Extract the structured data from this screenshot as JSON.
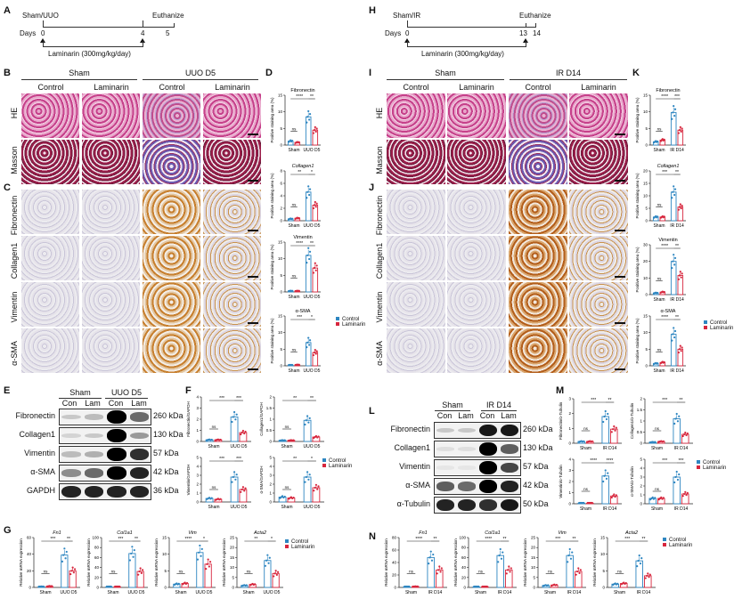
{
  "panels": {
    "A": {
      "label": "A",
      "start_label": "Sham/UUO",
      "end_label": "Euthanize",
      "days_label": "Days",
      "ticks": [
        "0",
        "4",
        "5"
      ],
      "treatment": "Laminarin (300mg/kg/day)"
    },
    "H": {
      "label": "H",
      "start_label": "Sham/IR",
      "end_label": "Euthanize",
      "days_label": "Days",
      "ticks": [
        "0",
        "13",
        "14"
      ],
      "treatment": "Laminarin (300mg/kg/day)"
    },
    "B": {
      "label": "B",
      "groups": [
        "Sham",
        "UUO D5"
      ],
      "columns": [
        "Control",
        "Laminarin",
        "Control",
        "Laminarin"
      ],
      "rows": [
        "HE",
        "Masson"
      ]
    },
    "C": {
      "label": "C",
      "rows": [
        "Fibronectin",
        "Collagen1",
        "Vimentin",
        "α-SMA"
      ],
      "scale_bar": "50 μm"
    },
    "I": {
      "label": "I",
      "groups": [
        "Sham",
        "IR D14"
      ],
      "columns": [
        "Control",
        "Laminarin",
        "Control",
        "Laminarin"
      ],
      "rows": [
        "HE",
        "Masson"
      ]
    },
    "J": {
      "label": "J",
      "rows": [
        "Fibronectin",
        "Collagen1",
        "Vimentin",
        "α-SMA"
      ],
      "scale_bar": "50 μm"
    },
    "D": {
      "label": "D"
    },
    "K": {
      "label": "K"
    },
    "E": {
      "label": "E",
      "groups": [
        "Sham",
        "UUO D5"
      ],
      "lanes": [
        "Con",
        "Lam",
        "Con",
        "Lam"
      ],
      "proteins": [
        "Fibronectin",
        "Collagen1",
        "Vimentin",
        "α-SMA",
        "GAPDH"
      ],
      "kda": [
        "260 kDa",
        "130 kDa",
        "57 kDa",
        "42 kDa",
        "36 kDa"
      ]
    },
    "L": {
      "label": "L",
      "groups": [
        "Sham",
        "IR D14"
      ],
      "lanes": [
        "Con",
        "Lam",
        "Con",
        "Lam"
      ],
      "proteins": [
        "Fibronectin",
        "Collagen1",
        "Vimentin",
        "α-SMA",
        "α-Tubulin"
      ],
      "kda": [
        "260 kDa",
        "130 kDa",
        "57 kDa",
        "42 kDa",
        "50 kDa"
      ]
    },
    "F": {
      "label": "F"
    },
    "M": {
      "label": "M"
    },
    "G": {
      "label": "G"
    },
    "N": {
      "label": "N"
    }
  },
  "legend": {
    "control": "Control",
    "laminarin": "Laminarin"
  },
  "colors": {
    "control": "#2e86c1",
    "laminarin": "#d7263d",
    "axis": "#222222"
  },
  "chart_data": [
    {
      "panel": "D",
      "type": "bar",
      "title": "Fibronectin",
      "ylabel": "Positive staining area (%)",
      "categories": [
        "Sham",
        "UUO D5"
      ],
      "ylim": [
        0,
        15
      ],
      "yticks": [
        0,
        5,
        10,
        15
      ],
      "series": [
        {
          "name": "Control",
          "values": [
            1.2,
            8.5
          ]
        },
        {
          "name": "Laminarin",
          "values": [
            0.8,
            4.5
          ]
        }
      ],
      "annotations": [
        "****",
        "**",
        "ns"
      ]
    },
    {
      "panel": "D",
      "type": "bar",
      "title": "Collagen1",
      "ylabel": "Positive staining area (%)",
      "categories": [
        "Sham",
        "UUO D5"
      ],
      "ylim": [
        0,
        8
      ],
      "yticks": [
        0,
        2,
        4,
        6,
        8
      ],
      "series": [
        {
          "name": "Control",
          "values": [
            0.3,
            4.6
          ]
        },
        {
          "name": "Laminarin",
          "values": [
            0.4,
            2.5
          ]
        }
      ],
      "annotations": [
        "**",
        "*",
        "ns"
      ]
    },
    {
      "panel": "D",
      "type": "bar",
      "title": "Vimentin",
      "ylabel": "Positive staining area (%)",
      "categories": [
        "Sham",
        "UUO D5"
      ],
      "ylim": [
        0,
        15
      ],
      "yticks": [
        0,
        5,
        10,
        15
      ],
      "series": [
        {
          "name": "Control",
          "values": [
            0.3,
            11.0
          ]
        },
        {
          "name": "Laminarin",
          "values": [
            0.3,
            7.2
          ]
        }
      ],
      "annotations": [
        "****",
        "**",
        "ns"
      ]
    },
    {
      "panel": "D",
      "type": "bar",
      "title": "α-SMA",
      "ylabel": "Positive staining area (%)",
      "categories": [
        "Sham",
        "UUO D5"
      ],
      "ylim": [
        0,
        15
      ],
      "yticks": [
        0,
        5,
        10,
        15
      ],
      "series": [
        {
          "name": "Control",
          "values": [
            0.2,
            7.0
          ]
        },
        {
          "name": "Laminarin",
          "values": [
            0.3,
            4.0
          ]
        }
      ],
      "annotations": [
        "***",
        "*",
        "ns"
      ]
    },
    {
      "panel": "F",
      "type": "bar",
      "title": "",
      "ylabel": "Fibronectin/GAPDH",
      "categories": [
        "Sham",
        "UUO D5"
      ],
      "ylim": [
        0,
        4
      ],
      "yticks": [
        0,
        1,
        2,
        3,
        4
      ],
      "series": [
        {
          "name": "Control",
          "values": [
            0.15,
            2.2
          ]
        },
        {
          "name": "Laminarin",
          "values": [
            0.15,
            0.8
          ]
        }
      ],
      "annotations": [
        "***",
        "***",
        "ns"
      ]
    },
    {
      "panel": "F",
      "type": "bar",
      "title": "",
      "ylabel": "Collagen1/GAPDH",
      "categories": [
        "Sham",
        "UUO D5"
      ],
      "ylim": [
        0,
        2.0
      ],
      "yticks": [
        0.0,
        0.5,
        1.0,
        1.5,
        2.0
      ],
      "series": [
        {
          "name": "Control",
          "values": [
            0.05,
            0.95
          ]
        },
        {
          "name": "Laminarin",
          "values": [
            0.05,
            0.2
          ]
        }
      ],
      "annotations": [
        "**",
        "**",
        "ns"
      ]
    },
    {
      "panel": "F",
      "type": "bar",
      "title": "",
      "ylabel": "Vimentin/GAPDH",
      "categories": [
        "Sham",
        "UUO D5"
      ],
      "ylim": [
        0,
        5
      ],
      "yticks": [
        0,
        1,
        2,
        3,
        4,
        5
      ],
      "series": [
        {
          "name": "Control",
          "values": [
            0.4,
            2.8
          ]
        },
        {
          "name": "Laminarin",
          "values": [
            0.3,
            1.4
          ]
        }
      ],
      "annotations": [
        "***",
        "***",
        "ns"
      ]
    },
    {
      "panel": "F",
      "type": "bar",
      "title": "",
      "ylabel": "α-SMA/GAPDH",
      "categories": [
        "Sham",
        "UUO D5"
      ],
      "ylim": [
        0,
        5
      ],
      "yticks": [
        0,
        1,
        2,
        3,
        4,
        5
      ],
      "series": [
        {
          "name": "Control",
          "values": [
            0.55,
            2.8
          ]
        },
        {
          "name": "Laminarin",
          "values": [
            0.45,
            1.6
          ]
        }
      ],
      "annotations": [
        "**",
        "*",
        "ns"
      ]
    },
    {
      "panel": "G",
      "type": "bar",
      "title": "Fn1",
      "ylabel": "Relative mRNA expression",
      "categories": [
        "Sham",
        "UUO D5"
      ],
      "ylim": [
        0,
        60
      ],
      "yticks": [
        0,
        20,
        40,
        60
      ],
      "series": [
        {
          "name": "Control",
          "values": [
            1,
            39
          ]
        },
        {
          "name": "Laminarin",
          "values": [
            1.5,
            20
          ]
        }
      ],
      "annotations": [
        "***",
        "**",
        "ns"
      ]
    },
    {
      "panel": "G",
      "type": "bar",
      "title": "Col1a1",
      "ylabel": "Relative mRNA expression",
      "categories": [
        "Sham",
        "UUO D5"
      ],
      "ylim": [
        0,
        100
      ],
      "yticks": [
        0,
        20,
        40,
        60,
        80,
        100
      ],
      "series": [
        {
          "name": "Control",
          "values": [
            1,
            68
          ]
        },
        {
          "name": "Laminarin",
          "values": [
            1.5,
            32
          ]
        }
      ],
      "annotations": [
        "***",
        "**",
        "ns"
      ]
    },
    {
      "panel": "G",
      "type": "bar",
      "title": "Vim",
      "ylabel": "Relative mRNA expression",
      "categories": [
        "Sham",
        "UUO D5"
      ],
      "ylim": [
        0,
        15
      ],
      "yticks": [
        0,
        5,
        10,
        15
      ],
      "series": [
        {
          "name": "Control",
          "values": [
            1,
            10.5
          ]
        },
        {
          "name": "Laminarin",
          "values": [
            1.2,
            7
          ]
        }
      ],
      "annotations": [
        "****",
        "*",
        "ns"
      ]
    },
    {
      "panel": "G",
      "type": "bar",
      "title": "Acta2",
      "ylabel": "Relative mRNA expression",
      "categories": [
        "Sham",
        "UUO D5"
      ],
      "ylim": [
        0,
        25
      ],
      "yticks": [
        0,
        5,
        10,
        15,
        20,
        25
      ],
      "series": [
        {
          "name": "Control",
          "values": [
            1,
            13.5
          ]
        },
        {
          "name": "Laminarin",
          "values": [
            1.5,
            7
          ]
        }
      ],
      "annotations": [
        "**",
        "*",
        "ns"
      ]
    },
    {
      "panel": "K",
      "type": "bar",
      "title": "Fibronectin",
      "ylabel": "Positive staining area (%)",
      "categories": [
        "Sham",
        "IR D14"
      ],
      "ylim": [
        0,
        15
      ],
      "yticks": [
        0,
        5,
        10,
        15
      ],
      "series": [
        {
          "name": "Control",
          "values": [
            1.0,
            9.8
          ]
        },
        {
          "name": "Laminarin",
          "values": [
            1.5,
            4.5
          ]
        }
      ],
      "annotations": [
        "****",
        "***",
        "ns"
      ]
    },
    {
      "panel": "K",
      "type": "bar",
      "title": "Collagen1",
      "ylabel": "Positive staining area (%)",
      "categories": [
        "Sham",
        "IR D14"
      ],
      "ylim": [
        0,
        20
      ],
      "yticks": [
        0,
        5,
        10,
        15,
        20
      ],
      "series": [
        {
          "name": "Control",
          "values": [
            1.5,
            11.5
          ]
        },
        {
          "name": "Laminarin",
          "values": [
            1.5,
            5.5
          ]
        }
      ],
      "annotations": [
        "***",
        "**",
        "ns"
      ]
    },
    {
      "panel": "K",
      "type": "bar",
      "title": "Vimentin",
      "ylabel": "Positive staining area (%)",
      "categories": [
        "Sham",
        "IR D14"
      ],
      "ylim": [
        0,
        30
      ],
      "yticks": [
        0,
        10,
        20,
        30
      ],
      "series": [
        {
          "name": "Control",
          "values": [
            1.0,
            20
          ]
        },
        {
          "name": "Laminarin",
          "values": [
            1.5,
            11.5
          ]
        }
      ],
      "annotations": [
        "****",
        "**",
        "ns"
      ]
    },
    {
      "panel": "K",
      "type": "bar",
      "title": "α-SMA",
      "ylabel": "Positive staining area (%)",
      "categories": [
        "Sham",
        "IR D14"
      ],
      "ylim": [
        0,
        15
      ],
      "yticks": [
        0,
        5,
        10,
        15
      ],
      "series": [
        {
          "name": "Control",
          "values": [
            0.7,
            9.5
          ]
        },
        {
          "name": "Laminarin",
          "values": [
            1.0,
            5.0
          ]
        }
      ],
      "annotations": [
        "****",
        "**",
        "ns"
      ]
    },
    {
      "panel": "M",
      "type": "bar",
      "title": "",
      "ylabel": "Fibronectin/α-Tubulin",
      "categories": [
        "Sham",
        "IR D14"
      ],
      "ylim": [
        0,
        3
      ],
      "yticks": [
        0,
        1,
        2,
        3
      ],
      "series": [
        {
          "name": "Control",
          "values": [
            0.12,
            1.8
          ]
        },
        {
          "name": "Laminarin",
          "values": [
            0.12,
            0.95
          ]
        }
      ],
      "annotations": [
        "***",
        "**",
        "ns"
      ]
    },
    {
      "panel": "M",
      "type": "bar",
      "title": "",
      "ylabel": "Collagen1/α-Tubulin",
      "categories": [
        "Sham",
        "IR D14"
      ],
      "ylim": [
        0,
        2.0
      ],
      "yticks": [
        0.0,
        0.5,
        1.0,
        1.5,
        2.0
      ],
      "series": [
        {
          "name": "Control",
          "values": [
            0.05,
            1.1
          ]
        },
        {
          "name": "Laminarin",
          "values": [
            0.08,
            0.4
          ]
        }
      ],
      "annotations": [
        "***",
        "**",
        "ns"
      ]
    },
    {
      "panel": "M",
      "type": "bar",
      "title": "",
      "ylabel": "Vimentin/α-Tubulin",
      "categories": [
        "Sham",
        "IR D14"
      ],
      "ylim": [
        0,
        4
      ],
      "yticks": [
        0,
        1,
        2,
        3,
        4
      ],
      "series": [
        {
          "name": "Control",
          "values": [
            0.05,
            2.5
          ]
        },
        {
          "name": "Laminarin",
          "values": [
            0.05,
            0.7
          ]
        }
      ],
      "annotations": [
        "****",
        "****",
        "ns"
      ]
    },
    {
      "panel": "M",
      "type": "bar",
      "title": "",
      "ylabel": "α-SMA/α-Tubulin",
      "categories": [
        "Sham",
        "IR D14"
      ],
      "ylim": [
        0,
        5
      ],
      "yticks": [
        0,
        1,
        2,
        3,
        4,
        5
      ],
      "series": [
        {
          "name": "Control",
          "values": [
            0.6,
            3.0
          ]
        },
        {
          "name": "Laminarin",
          "values": [
            0.6,
            1.1
          ]
        }
      ],
      "annotations": [
        "***",
        "***",
        "ns"
      ]
    },
    {
      "panel": "N",
      "type": "bar",
      "title": "Fn1",
      "ylabel": "Relative mRNA expression",
      "categories": [
        "Sham",
        "IR D14"
      ],
      "ylim": [
        0,
        80
      ],
      "yticks": [
        0,
        20,
        40,
        60,
        80
      ],
      "series": [
        {
          "name": "Control",
          "values": [
            1,
            48
          ]
        },
        {
          "name": "Laminarin",
          "values": [
            1.5,
            28
          ]
        }
      ],
      "annotations": [
        "****",
        "**",
        "ns"
      ]
    },
    {
      "panel": "N",
      "type": "bar",
      "title": "Col1a1",
      "ylabel": "Relative mRNA expression",
      "categories": [
        "Sham",
        "IR D14"
      ],
      "ylim": [
        0,
        100
      ],
      "yticks": [
        0,
        20,
        40,
        60,
        80,
        100
      ],
      "series": [
        {
          "name": "Control",
          "values": [
            1,
            64
          ]
        },
        {
          "name": "Laminarin",
          "values": [
            1.5,
            35
          ]
        }
      ],
      "annotations": [
        "****",
        "**",
        "ns"
      ]
    },
    {
      "panel": "N",
      "type": "bar",
      "title": "Vim",
      "ylabel": "Relative mRNA expression",
      "categories": [
        "Sham",
        "IR D14"
      ],
      "ylim": [
        0,
        25
      ],
      "yticks": [
        0,
        5,
        10,
        15,
        20,
        25
      ],
      "series": [
        {
          "name": "Control",
          "values": [
            1,
            16
          ]
        },
        {
          "name": "Laminarin",
          "values": [
            1.2,
            8
          ]
        }
      ],
      "annotations": [
        "***",
        "**",
        "ns"
      ]
    },
    {
      "panel": "N",
      "type": "bar",
      "title": "Acta2",
      "ylabel": "Relative mRNA expression",
      "categories": [
        "Sham",
        "IR D14"
      ],
      "ylim": [
        0,
        15
      ],
      "yticks": [
        0,
        5,
        10,
        15
      ],
      "series": [
        {
          "name": "Control",
          "values": [
            1,
            8
          ]
        },
        {
          "name": "Laminarin",
          "values": [
            1.2,
            3.5
          ]
        }
      ],
      "annotations": [
        "***",
        "**",
        "ns"
      ]
    }
  ]
}
